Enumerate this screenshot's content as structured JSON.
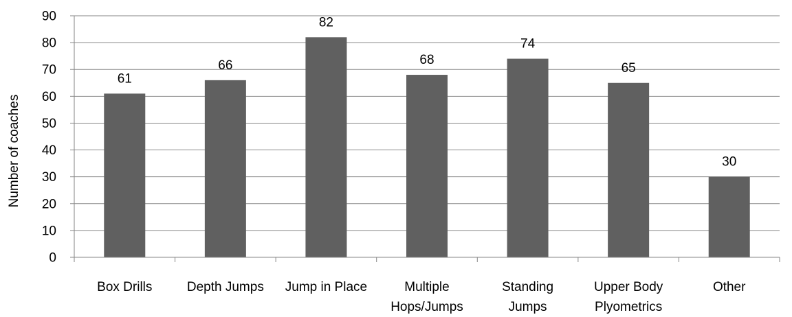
{
  "chart_data": {
    "type": "bar",
    "categories": [
      [
        "Box Drills"
      ],
      [
        "Depth Jumps"
      ],
      [
        "Jump in Place"
      ],
      [
        "Multiple",
        "Hops/Jumps"
      ],
      [
        "Standing",
        "Jumps"
      ],
      [
        "Upper Body",
        "Plyometrics"
      ],
      [
        "Other"
      ]
    ],
    "values": [
      61,
      66,
      82,
      68,
      74,
      65,
      30
    ],
    "data_labels": [
      "61",
      "66",
      "82",
      "68",
      "74",
      "65",
      "30"
    ],
    "ylabel": "Number of coaches",
    "xlabel": "",
    "title": "",
    "ylim": [
      0,
      90
    ],
    "yticks": [
      0,
      10,
      20,
      30,
      40,
      50,
      60,
      70,
      80,
      90
    ],
    "ytick_labels": [
      "0",
      "10",
      "20",
      "30",
      "40",
      "50",
      "60",
      "70",
      "80",
      "90"
    ],
    "grid": true,
    "legend": "none",
    "bar_color": "#606060",
    "grid_color": "#868686"
  }
}
